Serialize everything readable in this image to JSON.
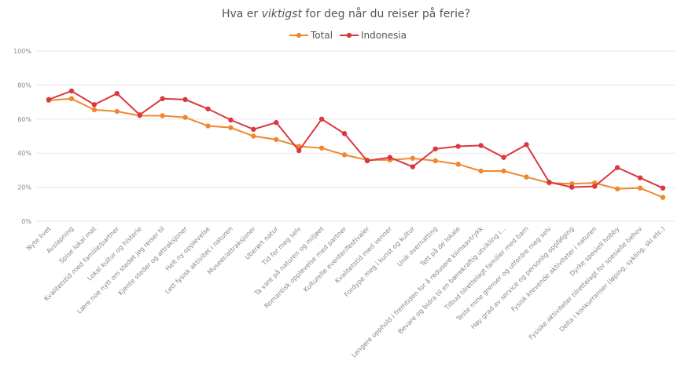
{
  "chart_data": {
    "type": "line",
    "title_parts": [
      "Hva er ",
      "viktigst",
      " for deg når du reiser på ferie?"
    ],
    "xlabel": "",
    "ylabel": "",
    "ylim": [
      0,
      100
    ],
    "yticks": [
      "0%",
      "20%",
      "40%",
      "60%",
      "80%",
      "100%"
    ],
    "grid": true,
    "legend_position": "top-center",
    "categories": [
      "Nyte livet",
      "Avslapning",
      "Spise lokal mat",
      "Kvalitetstid med familie/partner",
      "Lokal kultur og historie",
      "Lære noe nytt om stedet jeg reiser til",
      "Kjente steder og attraksjoner",
      "Helt ny opplevelse",
      "Lett fysisk aktivitet i naturen",
      "Museer/attraksjoner",
      "Uberørt natur",
      "Tid for meg selv",
      "Ta vare på naturen og miljøet",
      "Romantisk opplevelse med partner",
      "Kulturelle eventer/festivaler",
      "Kvalitetstid med venner",
      "Fordype meg i kunst og kultur",
      "Unik overnatting",
      "Tett på de lokale",
      "Lengere opphold i fremtiden for å redusere klimaavtrykk",
      "Bevare og bidra til en bærekraftig utvikling i...",
      "Tilbud tilrettelagt familier med barn",
      "Teste mine grenser og utfordre meg selv",
      "Høy grad av service og personlig oppfølging",
      "Fysisk krevende aktiviteter i naturen",
      "Dyrke spesiell hobby",
      "Fysiske aktiviteter tilrettelagt for spesielle behov",
      "Delta i konkurranser (løping, sykling, ski etc.)"
    ],
    "series": [
      {
        "name": "Total",
        "color": "#f0882f",
        "values": [
          71,
          72,
          65.5,
          64.5,
          62,
          62,
          61,
          56,
          55,
          50,
          48,
          44,
          43,
          39,
          36,
          36,
          37,
          35.5,
          33.5,
          29.5,
          29.5,
          26,
          22.5,
          22,
          22.5,
          19,
          19.5,
          14
        ]
      },
      {
        "name": "Indonesia",
        "color": "#d9383f",
        "values": [
          71.5,
          76.5,
          68.5,
          75,
          62.5,
          72,
          71.5,
          66,
          59.5,
          54,
          58,
          41.5,
          60,
          51.5,
          35.5,
          37.5,
          32,
          42.5,
          44,
          44.5,
          37.5,
          45,
          23,
          20,
          20.5,
          31.5,
          25.5,
          19.5
        ]
      }
    ]
  }
}
